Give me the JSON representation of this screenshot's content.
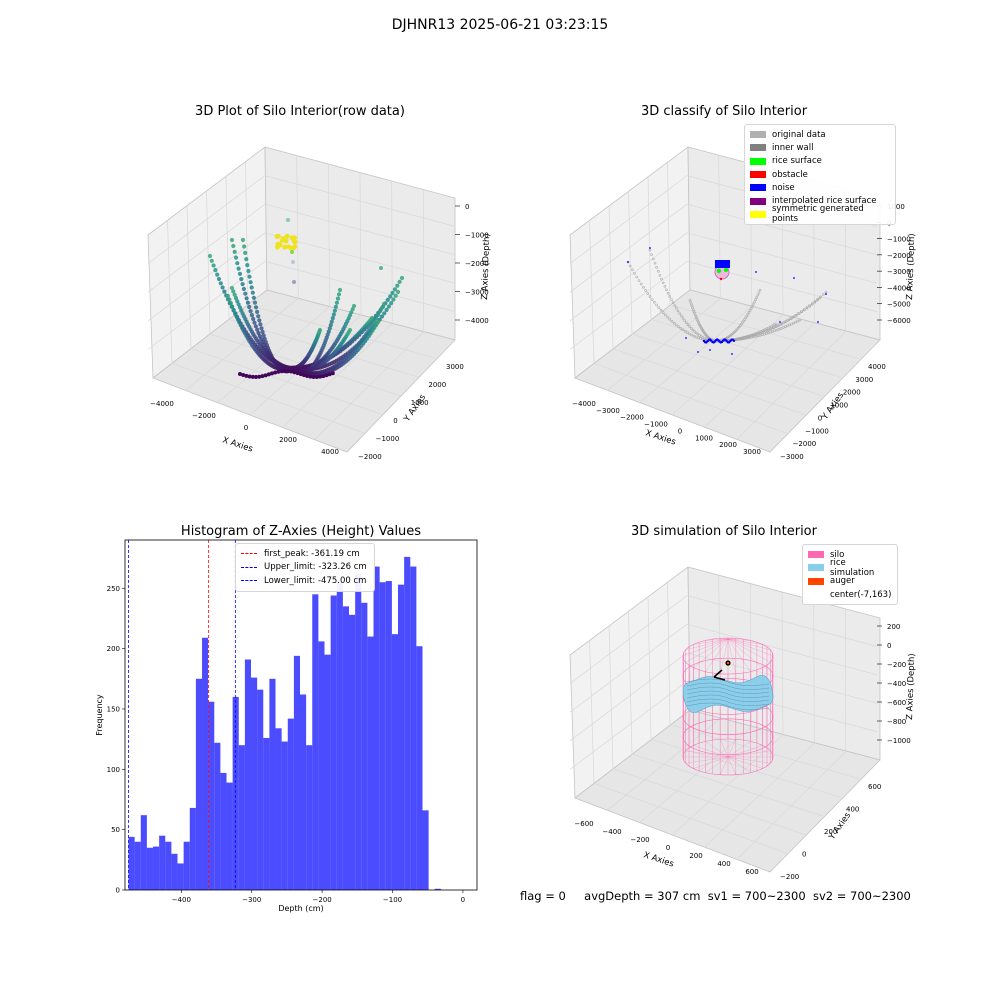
{
  "suptitle": "DJHNR13 2025-06-21 03:23:15",
  "status": {
    "flag": "flag = 0",
    "avg": "avgDepth = 307 cm",
    "sv1": "sv1 = 700~2300",
    "sv2": "sv2 = 700~2300"
  },
  "plot1": {
    "title": "3D Plot of Silo Interior(row data)",
    "xlabel": "X Axies",
    "ylabel": "Y Axies",
    "zlabel": "Z Axies (Depth)",
    "xticks": [
      "−4000",
      "−2000",
      "0",
      "2000",
      "4000"
    ],
    "yticks": [
      "−2000",
      "−1000",
      "0",
      "1000",
      "2000",
      "3000"
    ],
    "zticks": [
      "0",
      "−1000",
      "−2000",
      "−3000",
      "−4000"
    ]
  },
  "plot2": {
    "title": "3D classify of Silo Interior",
    "xlabel": "X Axies",
    "ylabel": "Y Axies",
    "zlabel": "Z Axies (Depth)",
    "xticks": [
      "−4000",
      "−3000",
      "−2000",
      "−1000",
      "0",
      "1000",
      "2000",
      "3000"
    ],
    "yticks": [
      "−3000",
      "−2000",
      "−1000",
      "0",
      "1000",
      "2000",
      "3000",
      "4000"
    ],
    "zticks": [
      "1000",
      "0",
      "−1000",
      "−2000",
      "−3000",
      "−4000",
      "−5000",
      "−6000"
    ],
    "legend": [
      {
        "label": "original data",
        "color": "#b0b0b0"
      },
      {
        "label": "inner wall",
        "color": "#808080"
      },
      {
        "label": "rice surface",
        "color": "#00ff00"
      },
      {
        "label": "obstacle",
        "color": "#ff0000"
      },
      {
        "label": "noise",
        "color": "#0000ff"
      },
      {
        "label": "interpolated rice surface",
        "color": "#800080"
      },
      {
        "label": "symmetric generated points",
        "color": "#ffff00"
      }
    ]
  },
  "plot4": {
    "title": "3D simulation of Silo Interior",
    "xlabel": "X Axies",
    "ylabel": "Y Axies",
    "zlabel": "Z Axies (Depth)",
    "xticks": [
      "−600",
      "−400",
      "−200",
      "0",
      "200",
      "400",
      "600"
    ],
    "yticks": [
      "−200",
      "0",
      "200",
      "400",
      "600"
    ],
    "zticks": [
      "200",
      "0",
      "−200",
      "−400",
      "−600",
      "−800",
      "−1000"
    ],
    "legend": [
      {
        "label": "silo",
        "color": "#ff69b4"
      },
      {
        "label": "rice simulation",
        "color": "#87ceeb"
      },
      {
        "label": "auger",
        "color": "#ff4500"
      },
      {
        "label": "center(-7,163)",
        "color": ""
      }
    ]
  },
  "chart_data": {
    "type": "bar",
    "title": "Histogram of Z-Axies (Height) Values",
    "xlabel": "Depth (cm)",
    "ylabel": "Frequency",
    "xlim": [
      -480,
      20
    ],
    "ylim": [
      0,
      290
    ],
    "xticks": [
      -400,
      -300,
      -200,
      -100,
      0
    ],
    "yticks": [
      0,
      50,
      100,
      150,
      200,
      250
    ],
    "bin_width": 8.7,
    "bin_start": -475,
    "color": "#0000ff",
    "values": [
      44,
      40,
      62,
      35,
      36,
      45,
      40,
      30,
      22,
      40,
      68,
      175,
      209,
      156,
      122,
      97,
      89,
      160,
      120,
      191,
      176,
      166,
      126,
      175,
      134,
      123,
      142,
      194,
      162,
      120,
      245,
      206,
      195,
      244,
      255,
      235,
      228,
      262,
      238,
      210,
      268,
      255,
      256,
      212,
      253,
      276,
      268,
      202,
      66,
      0,
      1
    ],
    "vlines": [
      {
        "label": "first_peak: -361.19 cm",
        "x": -361.19,
        "color": "#ff0000"
      },
      {
        "label": "Upper_limit: -323.26 cm",
        "x": -323.26,
        "color": "#0000ff"
      },
      {
        "label": "Lower_limit: -475.00 cm",
        "x": -475.0,
        "color": "#0000ff"
      }
    ],
    "legend_position": "upper-center"
  }
}
